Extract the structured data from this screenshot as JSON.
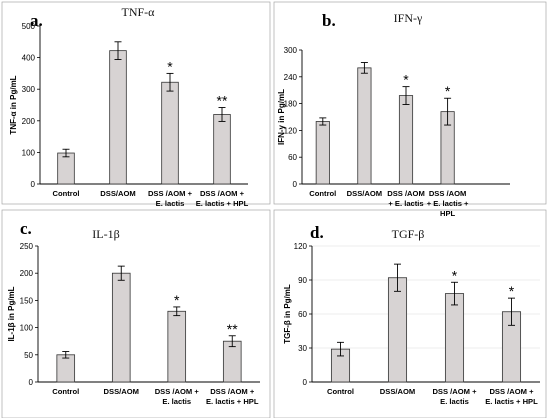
{
  "chart_data": [
    {
      "type": "bar",
      "panel": "a.",
      "title": "TNF-α",
      "xlabel": "",
      "ylabel": "TNF-α in Pg/mL",
      "ylim": [
        0,
        500
      ],
      "yticks": [
        0,
        100,
        200,
        300,
        400,
        500
      ],
      "grid": false,
      "categories": [
        [
          "Control"
        ],
        [
          "DSS/AOM"
        ],
        [
          "DSS /AOM +",
          "E. lactis"
        ],
        [
          "DSS /AOM +",
          "E. lactis + HPL"
        ]
      ],
      "values": [
        98,
        422,
        322,
        220
      ],
      "errors": [
        12,
        28,
        28,
        22
      ],
      "significance": [
        "",
        "",
        "*",
        "**"
      ]
    },
    {
      "type": "bar",
      "panel": "b.",
      "title": "IFN-γ",
      "xlabel": "",
      "ylabel": "IFN-γ in Pg/mL",
      "ylim": [
        0,
        300
      ],
      "yticks": [
        0,
        60,
        120,
        180,
        240,
        300
      ],
      "grid": false,
      "categories": [
        [
          "Control"
        ],
        [
          "DSS/AOM"
        ],
        [
          "DSS /AOM",
          "+ E. lactis"
        ],
        [
          "DSS /AOM",
          "+ E. lactis +",
          "HPL"
        ]
      ],
      "values": [
        140,
        260,
        198,
        162
      ],
      "errors": [
        8,
        12,
        20,
        30
      ],
      "significance": [
        "",
        "",
        "*",
        "*"
      ]
    },
    {
      "type": "bar",
      "panel": "c.",
      "title": "IL-1β",
      "xlabel": "",
      "ylabel": "IL-1β in Pg/mL",
      "ylim": [
        0,
        250
      ],
      "yticks": [
        0,
        50,
        100,
        150,
        200,
        250
      ],
      "grid": false,
      "categories": [
        [
          "Control"
        ],
        [
          "DSS/AOM"
        ],
        [
          "DSS /AOM +",
          "E. lactis"
        ],
        [
          "DSS /AOM +",
          "E. lactis + HPL"
        ]
      ],
      "values": [
        50,
        200,
        130,
        75
      ],
      "errors": [
        6,
        13,
        8,
        10
      ],
      "significance": [
        "",
        "",
        "*",
        "**"
      ]
    },
    {
      "type": "bar",
      "panel": "d.",
      "title": "TGF-β",
      "xlabel": "",
      "ylabel": "TGF-β in Pg/mL",
      "ylim": [
        0,
        120
      ],
      "yticks": [
        0,
        30,
        60,
        90,
        120
      ],
      "grid": true,
      "categories": [
        [
          "Control"
        ],
        [
          "DSS/AOM"
        ],
        [
          "DSS /AOM +",
          "E. lactis"
        ],
        [
          "DSS /AOM +",
          "E. lactis + HPL"
        ]
      ],
      "values": [
        29,
        92,
        78,
        62
      ],
      "errors": [
        6,
        12,
        10,
        12
      ],
      "significance": [
        "",
        "",
        "*",
        "*"
      ]
    }
  ]
}
